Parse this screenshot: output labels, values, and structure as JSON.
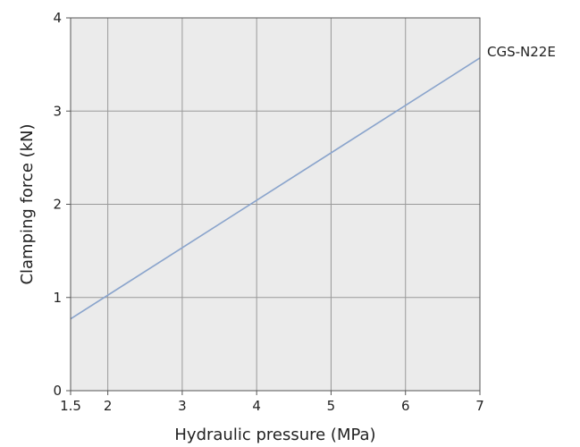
{
  "chart_data": {
    "type": "line",
    "title": "",
    "xlabel": "Hydraulic pressure (MPa)",
    "ylabel": "Clamping force (kN)",
    "xlim": [
      1.5,
      7
    ],
    "ylim": [
      0,
      4
    ],
    "x_ticks": [
      {
        "value": 1.5,
        "label": "1.5"
      },
      {
        "value": 2,
        "label": "2"
      },
      {
        "value": 3,
        "label": "3"
      },
      {
        "value": 4,
        "label": "4"
      },
      {
        "value": 5,
        "label": "5"
      },
      {
        "value": 6,
        "label": "6"
      },
      {
        "value": 7,
        "label": "7"
      }
    ],
    "y_ticks": [
      {
        "value": 0,
        "label": "0"
      },
      {
        "value": 1,
        "label": "1"
      },
      {
        "value": 2,
        "label": "2"
      },
      {
        "value": 3,
        "label": "3"
      },
      {
        "value": 4,
        "label": "4"
      }
    ],
    "grid": true,
    "plot_background": "#ebebeb",
    "grid_color": "#999999",
    "series": [
      {
        "name": "CGS-N22E",
        "color": "#8aa4cc",
        "x": [
          1.5,
          7
        ],
        "y": [
          0.77,
          3.57
        ]
      }
    ]
  }
}
